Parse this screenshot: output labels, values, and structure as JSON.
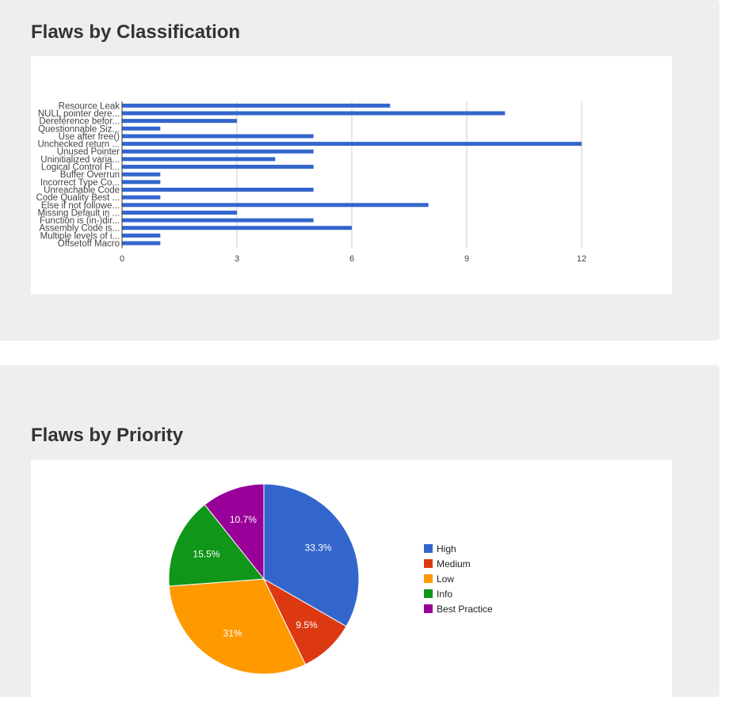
{
  "sections": [
    {
      "title": "Flaws by Classification"
    },
    {
      "title": "Flaws by Priority"
    }
  ],
  "colors": {
    "bar": "#3366cc",
    "grid": "#cccccc",
    "axis_text": "#444444",
    "panel_bg": "#eeeeee"
  },
  "chart_data": [
    {
      "type": "bar",
      "orientation": "horizontal",
      "title": "Flaws by Classification",
      "xlabel": "",
      "ylabel": "",
      "xlim": [
        0,
        12
      ],
      "x_ticks": [
        "0",
        "3",
        "6",
        "9",
        "12"
      ],
      "grid": true,
      "categories": [
        "Resource Leak",
        "NULL pointer dere...",
        "Dereference befor...",
        "Questionnable Siz...",
        "Use after free()",
        "Unchecked return ...",
        "Unused Pointer",
        "Uninitialized varia...",
        "Logical Control Fl...",
        "Buffer Overrun",
        "Incorrect Type Co...",
        "Unreachable Code",
        "Code Quality Best ...",
        "Else if not followe...",
        "Missing Default in ...",
        "Function is (in-)dir...",
        "Assembly Code is...",
        "Multiple levels of i...",
        "Offsetoff Macro"
      ],
      "values": [
        7,
        10,
        3,
        1,
        5,
        12,
        5,
        4,
        5,
        1,
        1,
        5,
        1,
        8,
        3,
        5,
        6,
        1,
        1
      ],
      "color": "#3366cc"
    },
    {
      "type": "pie",
      "title": "Flaws by Priority",
      "legend_position": "right",
      "slices": [
        {
          "label": "High",
          "value": 33.3,
          "display": "33.3%",
          "color": "#3366cc"
        },
        {
          "label": "Medium",
          "value": 9.5,
          "display": "9.5%",
          "color": "#dc3912"
        },
        {
          "label": "Low",
          "value": 31.0,
          "display": "31%",
          "color": "#ff9900"
        },
        {
          "label": "Info",
          "value": 15.5,
          "display": "15.5%",
          "color": "#109618"
        },
        {
          "label": "Best Practice",
          "value": 10.7,
          "display": "10.7%",
          "color": "#990099"
        }
      ]
    }
  ]
}
